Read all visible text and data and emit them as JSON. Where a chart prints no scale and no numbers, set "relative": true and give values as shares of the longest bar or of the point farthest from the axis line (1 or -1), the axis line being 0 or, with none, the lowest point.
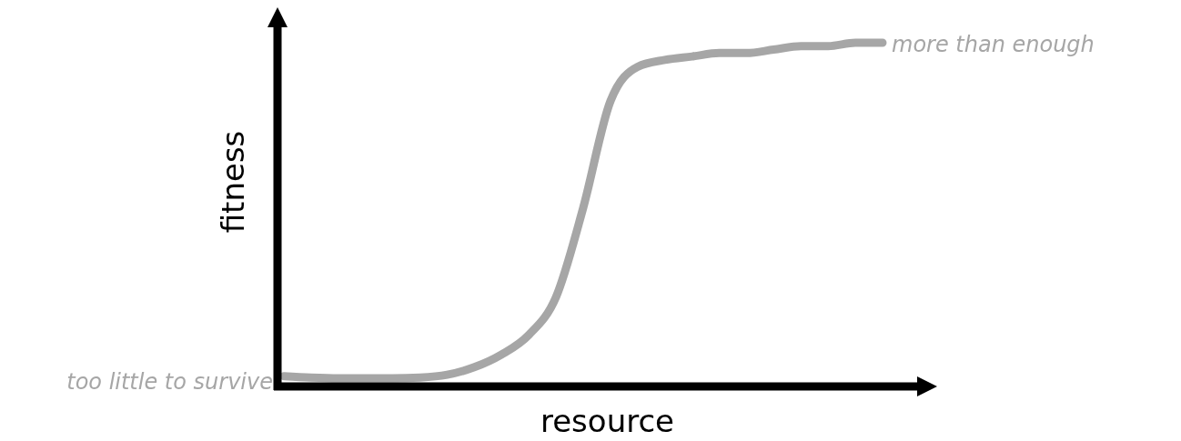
{
  "chart_data": {
    "type": "line",
    "relative": true,
    "xlabel": "resource",
    "ylabel": "fitness",
    "categories": [
      null,
      null,
      null,
      null,
      null,
      null,
      null,
      null,
      null,
      null,
      null,
      null,
      null,
      null,
      null,
      null,
      null,
      null,
      null,
      null,
      null,
      null,
      null
    ],
    "series": [
      {
        "color": "#a6a6a6",
        "values": [
          0.03,
          0.026,
          0.024,
          0.024,
          0.024,
          0.026,
          0.034,
          0.056,
          0.093,
          0.15,
          0.26,
          0.52,
          0.83,
          0.93,
          0.95,
          0.96,
          0.97,
          0.97,
          0.98,
          0.99,
          0.99,
          1.0,
          1.0
        ]
      }
    ],
    "annotations": [
      "too little to survive",
      "more than enough"
    ],
    "marker": "none",
    "line_style": "solid"
  }
}
